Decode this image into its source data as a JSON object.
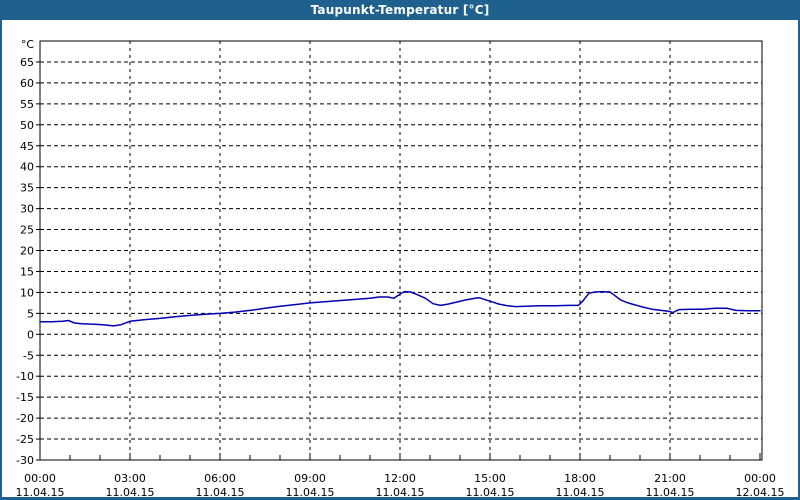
{
  "window": {
    "title": "Taupunkt-Temperatur [°C]"
  },
  "colors": {
    "titlebar_bg": "#1f618e",
    "titlebar_text": "#ffffff",
    "window_border": "#1f618e",
    "plot_background": "#ffffff",
    "grid": "#000000",
    "axis": "#000000",
    "label_text": "#000000",
    "line": "#0000b4"
  },
  "chart_data": {
    "type": "line",
    "title": "Taupunkt-Temperatur [°C]",
    "legend": "none",
    "grid": "dashed",
    "y_axis": {
      "unit_label": "°C",
      "range": [
        -30,
        70
      ],
      "tick_step": 5,
      "tick_labels": [
        65,
        60,
        55,
        50,
        45,
        40,
        35,
        30,
        25,
        20,
        15,
        10,
        5,
        0,
        -5,
        -10,
        -15,
        -20,
        -25,
        -30
      ]
    },
    "x_axis": {
      "range_hours": [
        0,
        24
      ],
      "minor_tick_every_hours": 1,
      "major_ticks": [
        {
          "hour": 0,
          "time": "00:00",
          "date": "11.04.15"
        },
        {
          "hour": 3,
          "time": "03:00",
          "date": "11.04.15"
        },
        {
          "hour": 6,
          "time": "06:00",
          "date": "11.04.15"
        },
        {
          "hour": 9,
          "time": "09:00",
          "date": "11.04.15"
        },
        {
          "hour": 12,
          "time": "12:00",
          "date": "11.04.15"
        },
        {
          "hour": 15,
          "time": "15:00",
          "date": "11.04.15"
        },
        {
          "hour": 18,
          "time": "18:00",
          "date": "11.04.15"
        },
        {
          "hour": 21,
          "time": "21:00",
          "date": "11.04.15"
        },
        {
          "hour": 24,
          "time": "00:00",
          "date": "12.04.15"
        }
      ]
    },
    "series": [
      {
        "name": "Taupunkt-Temperatur",
        "color": "#0000b4",
        "points_hour_degC": [
          [
            0.0,
            3.0
          ],
          [
            0.4,
            3.0
          ],
          [
            0.75,
            3.1
          ],
          [
            0.95,
            3.3
          ],
          [
            1.15,
            2.7
          ],
          [
            1.4,
            2.5
          ],
          [
            1.8,
            2.4
          ],
          [
            2.1,
            2.3
          ],
          [
            2.45,
            2.0
          ],
          [
            2.7,
            2.3
          ],
          [
            3.0,
            3.1
          ],
          [
            3.5,
            3.5
          ],
          [
            4.0,
            3.8
          ],
          [
            4.5,
            4.2
          ],
          [
            5.0,
            4.5
          ],
          [
            5.5,
            4.8
          ],
          [
            6.0,
            5.0
          ],
          [
            6.5,
            5.3
          ],
          [
            7.0,
            5.7
          ],
          [
            7.5,
            6.2
          ],
          [
            8.0,
            6.7
          ],
          [
            8.5,
            7.1
          ],
          [
            9.0,
            7.5
          ],
          [
            9.7,
            7.9
          ],
          [
            10.3,
            8.2
          ],
          [
            11.0,
            8.6
          ],
          [
            11.3,
            8.9
          ],
          [
            11.6,
            8.9
          ],
          [
            11.8,
            8.6
          ],
          [
            12.0,
            9.6
          ],
          [
            12.15,
            10.2
          ],
          [
            12.35,
            10.1
          ],
          [
            12.6,
            9.4
          ],
          [
            12.85,
            8.6
          ],
          [
            13.1,
            7.3
          ],
          [
            13.35,
            6.9
          ],
          [
            13.6,
            7.2
          ],
          [
            13.9,
            7.7
          ],
          [
            14.2,
            8.2
          ],
          [
            14.5,
            8.6
          ],
          [
            14.65,
            8.7
          ],
          [
            15.0,
            7.9
          ],
          [
            15.3,
            7.2
          ],
          [
            15.6,
            6.8
          ],
          [
            15.85,
            6.6
          ],
          [
            16.2,
            6.7
          ],
          [
            16.7,
            6.8
          ],
          [
            17.2,
            6.8
          ],
          [
            17.6,
            6.9
          ],
          [
            17.95,
            6.9
          ],
          [
            18.1,
            8.0
          ],
          [
            18.3,
            9.8
          ],
          [
            18.5,
            10.1
          ],
          [
            18.75,
            10.2
          ],
          [
            19.0,
            10.1
          ],
          [
            19.15,
            9.3
          ],
          [
            19.35,
            8.2
          ],
          [
            19.6,
            7.5
          ],
          [
            19.8,
            7.1
          ],
          [
            20.1,
            6.5
          ],
          [
            20.4,
            6.0
          ],
          [
            20.7,
            5.7
          ],
          [
            20.95,
            5.5
          ],
          [
            21.1,
            5.2
          ],
          [
            21.3,
            5.9
          ],
          [
            21.7,
            6.0
          ],
          [
            22.1,
            6.0
          ],
          [
            22.5,
            6.2
          ],
          [
            22.9,
            6.2
          ],
          [
            23.2,
            5.7
          ],
          [
            23.6,
            5.6
          ],
          [
            24.0,
            5.6
          ]
        ]
      }
    ]
  }
}
